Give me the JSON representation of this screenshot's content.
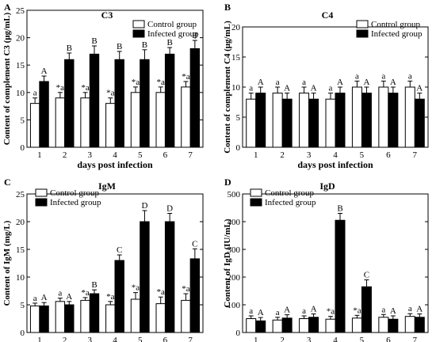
{
  "chart_data": [
    {
      "panel": "A",
      "type": "bar",
      "title": "C3",
      "xlabel": "days post infection",
      "ylabel": "Content of complement C3 (μg/mL)",
      "categories": [
        "1",
        "2",
        "3",
        "4",
        "5",
        "6",
        "7"
      ],
      "ylim": [
        0,
        25
      ],
      "yticks": [
        "0",
        "5",
        "10",
        "15",
        "20",
        "25"
      ],
      "legend_position": "top-right",
      "series": [
        {
          "name": "Control group",
          "values": [
            8,
            9,
            9,
            8,
            10,
            10,
            11
          ],
          "errors": [
            1,
            1,
            1,
            1,
            1,
            1,
            1
          ],
          "labels": [
            "a",
            "*a",
            "*a",
            "*a",
            "*a",
            "*a",
            "*a"
          ]
        },
        {
          "name": "Infected group",
          "values": [
            12,
            16,
            17,
            16,
            16,
            17,
            18
          ],
          "errors": [
            1,
            1.2,
            1.5,
            1.5,
            1.8,
            1.2,
            1.5
          ],
          "labels": [
            "A",
            "B",
            "B",
            "B",
            "B",
            "B",
            "B"
          ]
        }
      ]
    },
    {
      "panel": "B",
      "type": "bar",
      "title": "C4",
      "xlabel": "days post infection",
      "ylabel": "Content of complement C4 (μg/mL)",
      "categories": [
        "1",
        "2",
        "3",
        "4",
        "5",
        "6",
        "7"
      ],
      "ylim": [
        0,
        20
      ],
      "yticks": [
        "0",
        "5",
        "10",
        "15",
        "20"
      ],
      "legend_position": "top-right",
      "series": [
        {
          "name": "Control group",
          "values": [
            8,
            9,
            9,
            8,
            10,
            10,
            10
          ],
          "errors": [
            1,
            1,
            1,
            1,
            1,
            1,
            1
          ],
          "labels": [
            "a",
            "a",
            "a",
            "a",
            "a",
            "a",
            "a"
          ]
        },
        {
          "name": "Infected group",
          "values": [
            9,
            8,
            8,
            9,
            9,
            9,
            8
          ],
          "errors": [
            1,
            1,
            1,
            1,
            1,
            1,
            1
          ],
          "labels": [
            "A",
            "A",
            "A",
            "A",
            "A",
            "A",
            "A"
          ]
        }
      ]
    },
    {
      "panel": "C",
      "type": "bar",
      "title": "IgM",
      "xlabel": "days post infection",
      "ylabel": "Content of IgM (mg/L)",
      "categories": [
        "1",
        "2",
        "3",
        "4",
        "5",
        "6",
        "7"
      ],
      "ylim": [
        0,
        25
      ],
      "yticks": [
        "0",
        "5",
        "10",
        "15",
        "20",
        "25"
      ],
      "legend_position": "top-left",
      "series": [
        {
          "name": "Control group",
          "values": [
            4.8,
            5.6,
            5.8,
            5.0,
            6.0,
            5.2,
            5.8
          ],
          "errors": [
            0.5,
            0.6,
            0.5,
            0.6,
            1.2,
            1.2,
            1.2
          ],
          "labels": [
            "a",
            "a",
            "*a",
            "*a",
            "*a",
            "*a",
            "*a"
          ]
        },
        {
          "name": "Infected group",
          "values": [
            4.8,
            5.0,
            7.0,
            13.0,
            20.0,
            20.0,
            13.3
          ],
          "errors": [
            0.6,
            0.6,
            0.7,
            1.0,
            2.0,
            1.5,
            1.8
          ],
          "labels": [
            "A",
            "A",
            "B",
            "C",
            "D",
            "D",
            "C"
          ]
        }
      ]
    },
    {
      "panel": "D",
      "type": "bar",
      "title": "IgD",
      "xlabel": "days post infection",
      "ylabel": "Content of IgD (IU/mL)",
      "categories": [
        "1",
        "2",
        "3",
        "4",
        "5",
        "6",
        "7"
      ],
      "ylim": [
        0,
        500
      ],
      "yticks": [
        "0",
        "100",
        "200",
        "300",
        "400",
        "500"
      ],
      "legend_position": "top-left",
      "series": [
        {
          "name": "Control group",
          "values": [
            50,
            45,
            50,
            48,
            52,
            55,
            58
          ],
          "errors": [
            10,
            10,
            10,
            10,
            10,
            10,
            10
          ],
          "labels": [
            "a",
            "a",
            "a",
            "*a",
            "*a",
            "a",
            "a"
          ]
        },
        {
          "name": "Infected group",
          "values": [
            42,
            52,
            55,
            405,
            165,
            48,
            55
          ],
          "errors": [
            12,
            12,
            12,
            25,
            25,
            12,
            12
          ],
          "labels": [
            "A",
            "A",
            "A",
            "B",
            "C",
            "A",
            "A"
          ]
        }
      ]
    }
  ]
}
